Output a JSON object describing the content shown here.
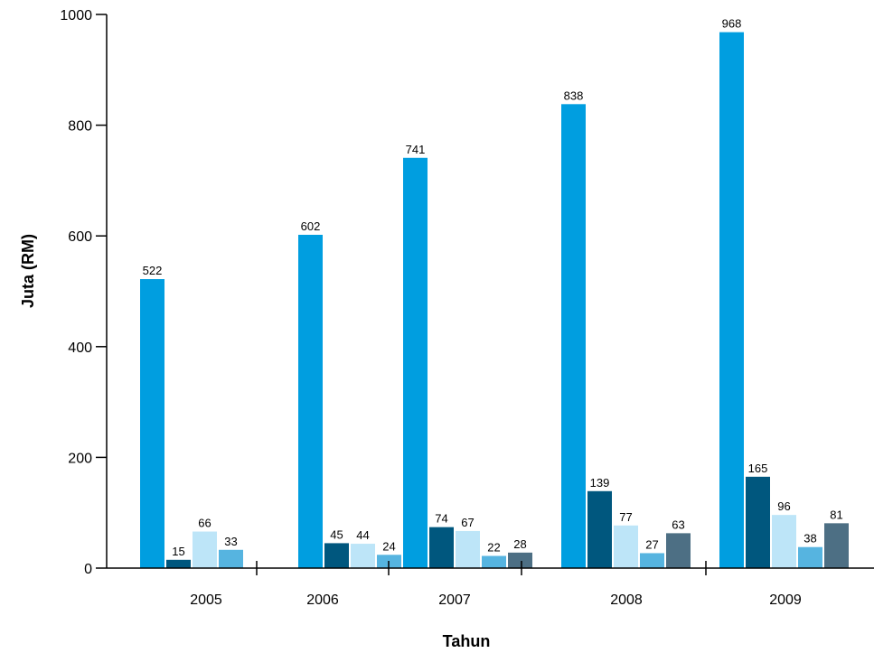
{
  "chart_data": {
    "type": "bar",
    "title": "",
    "xlabel": "Tahun",
    "ylabel": "Juta (RM)",
    "ylim": [
      0,
      1000
    ],
    "yticks": [
      "0",
      "200",
      "400",
      "600",
      "800",
      "1000"
    ],
    "categories": [
      "2005",
      "2006",
      "2007",
      "2008",
      "2009"
    ],
    "grid": false,
    "legend": "none",
    "series": [
      {
        "color": "#009ee0",
        "values": [
          522,
          602,
          741,
          838,
          968
        ],
        "labels": [
          "522",
          "602",
          "741",
          "838",
          "968"
        ]
      },
      {
        "color": "#00577e",
        "values": [
          15,
          45,
          74,
          139,
          165
        ],
        "labels": [
          "15",
          "45",
          "74",
          "139",
          "165"
        ]
      },
      {
        "color": "#bde5f8",
        "values": [
          66,
          44,
          67,
          77,
          96
        ],
        "labels": [
          "66",
          "44",
          "67",
          "77",
          "96"
        ]
      },
      {
        "color": "#56b4e0",
        "values": [
          33,
          24,
          22,
          27,
          38
        ],
        "labels": [
          "33",
          "24",
          "22",
          "27",
          "38"
        ]
      },
      {
        "color": "#4d6f84",
        "values": [
          null,
          null,
          28,
          63,
          81
        ],
        "labels": [
          "",
          "",
          "28",
          "63",
          "81"
        ]
      }
    ]
  }
}
